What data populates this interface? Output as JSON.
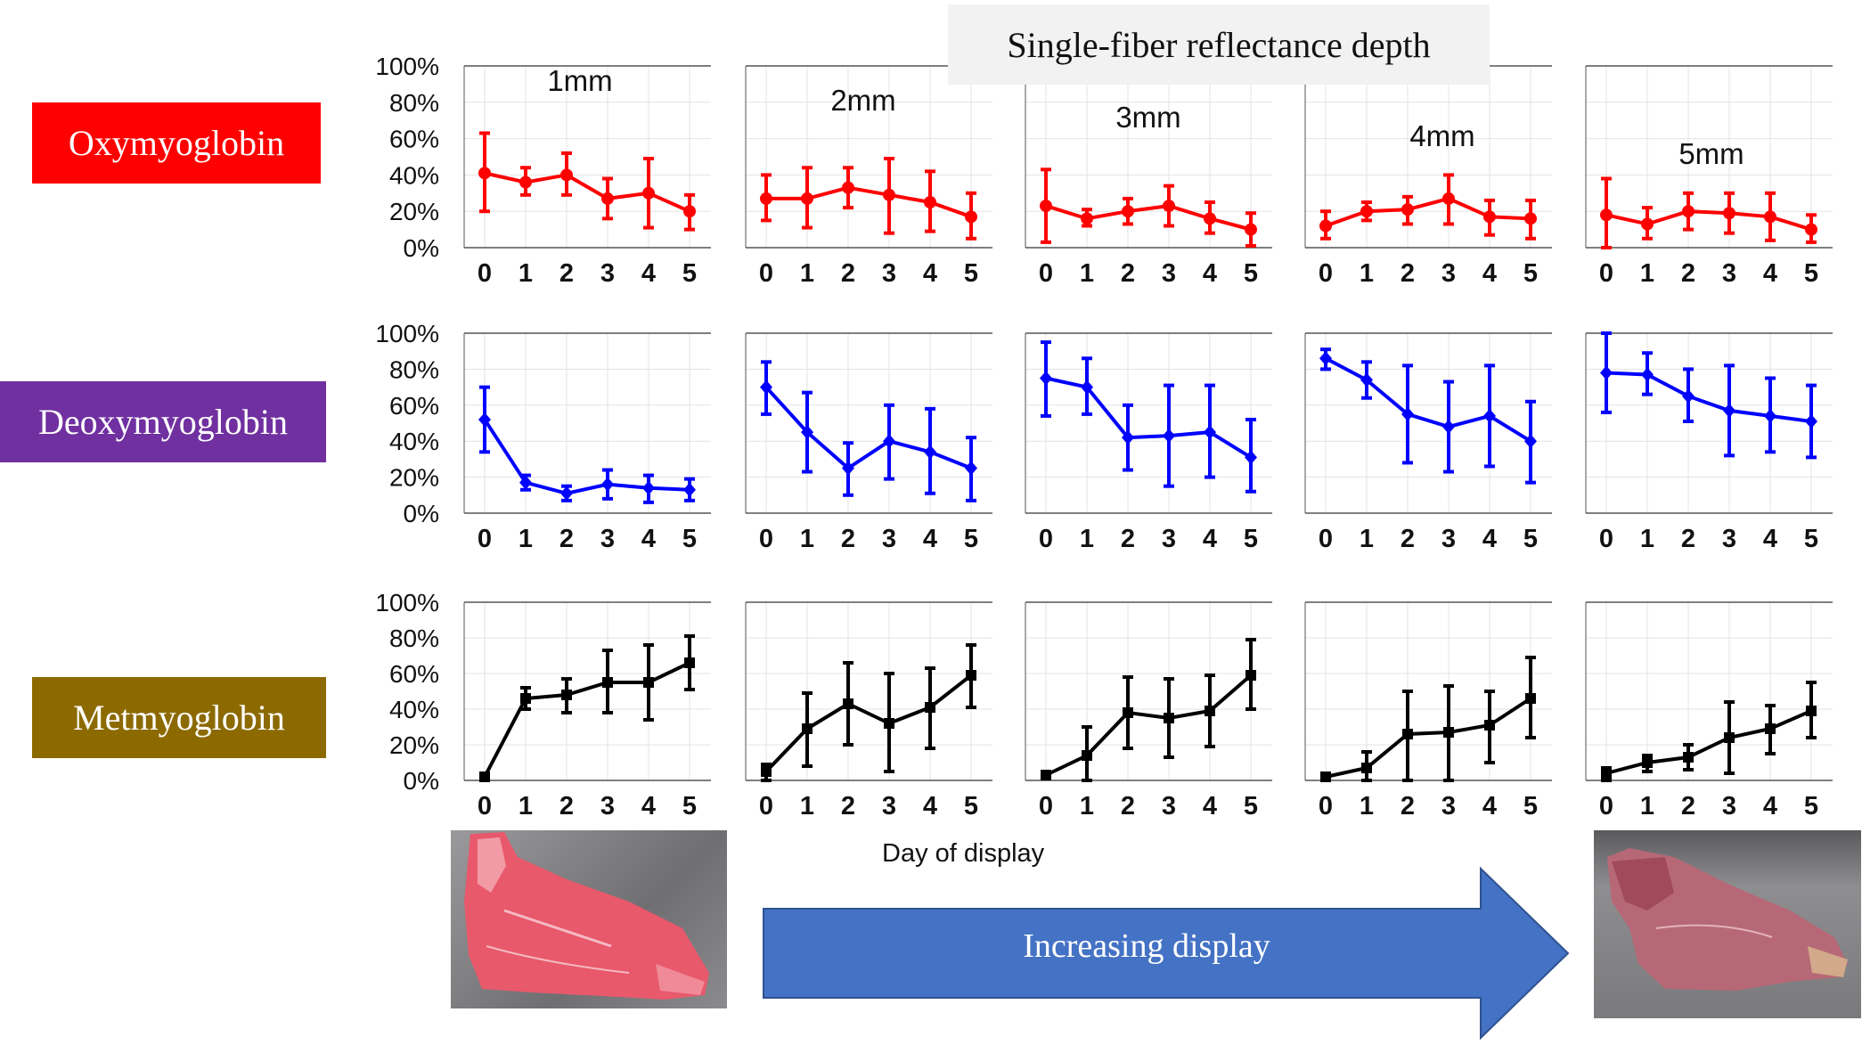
{
  "figure": {
    "title": "Single-fiber reflectance depth",
    "xlabel": "Day of display",
    "arrow_label": "Increasing display",
    "row_labels": [
      {
        "name": "Oxymyoglobin",
        "color": "#ff0000"
      },
      {
        "name": "Deoxymyoglobin",
        "color": "#7030a0"
      },
      {
        "name": "Metmyoglobin",
        "color": "#8c6a00"
      }
    ],
    "photos": [
      {
        "name": "fresh-steak-photo",
        "description": "bright red steak, day 0"
      },
      {
        "name": "aged-steak-photo",
        "description": "discolored steak, day 5"
      }
    ],
    "arrow_color": "#4472c4"
  },
  "chart_data": [
    {
      "type": "line",
      "row": "Oxymyoglobin",
      "depth": "1mm",
      "title": "1mm",
      "color": "#ff0000",
      "marker": "circle",
      "x": [
        0,
        1,
        2,
        3,
        4,
        5
      ],
      "xticks": [
        "0",
        "1",
        "2",
        "3",
        "4",
        "5"
      ],
      "yticks": [
        "0%",
        "20%",
        "40%",
        "60%",
        "80%",
        "100%"
      ],
      "ylim": [
        0,
        100
      ],
      "grid": true,
      "values": [
        41,
        36,
        40,
        27,
        30,
        20
      ],
      "err_low": [
        20,
        29,
        29,
        16,
        11,
        10
      ],
      "err_high": [
        63,
        44,
        52,
        38,
        49,
        29
      ]
    },
    {
      "type": "line",
      "row": "Oxymyoglobin",
      "depth": "2mm",
      "title": "2mm",
      "color": "#ff0000",
      "marker": "circle",
      "x": [
        0,
        1,
        2,
        3,
        4,
        5
      ],
      "xticks": [
        "0",
        "1",
        "2",
        "3",
        "4",
        "5"
      ],
      "ylim": [
        0,
        100
      ],
      "grid": true,
      "values": [
        27,
        27,
        33,
        29,
        25,
        17
      ],
      "err_low": [
        15,
        11,
        22,
        8,
        9,
        5
      ],
      "err_high": [
        40,
        44,
        44,
        49,
        42,
        30
      ]
    },
    {
      "type": "line",
      "row": "Oxymyoglobin",
      "depth": "3mm",
      "title": "3mm",
      "color": "#ff0000",
      "marker": "circle",
      "x": [
        0,
        1,
        2,
        3,
        4,
        5
      ],
      "xticks": [
        "0",
        "1",
        "2",
        "3",
        "4",
        "5"
      ],
      "ylim": [
        0,
        100
      ],
      "grid": true,
      "values": [
        23,
        16,
        20,
        23,
        16,
        10
      ],
      "err_low": [
        3,
        12,
        13,
        12,
        8,
        1
      ],
      "err_high": [
        43,
        21,
        27,
        34,
        25,
        19
      ]
    },
    {
      "type": "line",
      "row": "Oxymyoglobin",
      "depth": "4mm",
      "title": "4mm",
      "color": "#ff0000",
      "marker": "circle",
      "x": [
        0,
        1,
        2,
        3,
        4,
        5
      ],
      "xticks": [
        "0",
        "1",
        "2",
        "3",
        "4",
        "5"
      ],
      "ylim": [
        0,
        100
      ],
      "grid": true,
      "values": [
        12,
        20,
        21,
        27,
        17,
        16
      ],
      "err_low": [
        5,
        15,
        13,
        13,
        7,
        5
      ],
      "err_high": [
        20,
        25,
        28,
        40,
        26,
        26
      ]
    },
    {
      "type": "line",
      "row": "Oxymyoglobin",
      "depth": "5mm",
      "title": "5mm",
      "color": "#ff0000",
      "marker": "circle",
      "x": [
        0,
        1,
        2,
        3,
        4,
        5
      ],
      "xticks": [
        "0",
        "1",
        "2",
        "3",
        "4",
        "5"
      ],
      "ylim": [
        0,
        100
      ],
      "grid": true,
      "values": [
        18,
        13,
        20,
        19,
        17,
        10
      ],
      "err_low": [
        0,
        5,
        10,
        8,
        4,
        3
      ],
      "err_high": [
        38,
        22,
        30,
        30,
        30,
        18
      ]
    },
    {
      "type": "line",
      "row": "Deoxymyoglobin",
      "depth": "1mm",
      "title": "",
      "color": "#0000ff",
      "marker": "diamond",
      "x": [
        0,
        1,
        2,
        3,
        4,
        5
      ],
      "xticks": [
        "0",
        "1",
        "2",
        "3",
        "4",
        "5"
      ],
      "yticks": [
        "0%",
        "20%",
        "40%",
        "60%",
        "80%",
        "100%"
      ],
      "ylim": [
        0,
        100
      ],
      "grid": true,
      "values": [
        52,
        17,
        11,
        16,
        14,
        13
      ],
      "err_low": [
        34,
        13,
        7,
        8,
        6,
        7
      ],
      "err_high": [
        70,
        21,
        15,
        24,
        21,
        19
      ]
    },
    {
      "type": "line",
      "row": "Deoxymyoglobin",
      "depth": "2mm",
      "title": "",
      "color": "#0000ff",
      "marker": "diamond",
      "x": [
        0,
        1,
        2,
        3,
        4,
        5
      ],
      "xticks": [
        "0",
        "1",
        "2",
        "3",
        "4",
        "5"
      ],
      "ylim": [
        0,
        100
      ],
      "grid": true,
      "values": [
        70,
        45,
        25,
        40,
        34,
        25
      ],
      "err_low": [
        55,
        23,
        10,
        19,
        11,
        7
      ],
      "err_high": [
        84,
        67,
        39,
        60,
        58,
        42
      ]
    },
    {
      "type": "line",
      "row": "Deoxymyoglobin",
      "depth": "3mm",
      "title": "",
      "color": "#0000ff",
      "marker": "diamond",
      "x": [
        0,
        1,
        2,
        3,
        4,
        5
      ],
      "xticks": [
        "0",
        "1",
        "2",
        "3",
        "4",
        "5"
      ],
      "ylim": [
        0,
        100
      ],
      "grid": true,
      "values": [
        75,
        70,
        42,
        43,
        45,
        31
      ],
      "err_low": [
        54,
        55,
        24,
        15,
        20,
        12
      ],
      "err_high": [
        95,
        86,
        60,
        71,
        71,
        52
      ]
    },
    {
      "type": "line",
      "row": "Deoxymyoglobin",
      "depth": "4mm",
      "title": "",
      "color": "#0000ff",
      "marker": "diamond",
      "x": [
        0,
        1,
        2,
        3,
        4,
        5
      ],
      "xticks": [
        "0",
        "1",
        "2",
        "3",
        "4",
        "5"
      ],
      "ylim": [
        0,
        100
      ],
      "grid": true,
      "values": [
        86,
        74,
        55,
        48,
        54,
        40
      ],
      "err_low": [
        80,
        64,
        28,
        23,
        26,
        17
      ],
      "err_high": [
        91,
        84,
        82,
        73,
        82,
        62
      ]
    },
    {
      "type": "line",
      "row": "Deoxymyoglobin",
      "depth": "5mm",
      "title": "",
      "color": "#0000ff",
      "marker": "diamond",
      "x": [
        0,
        1,
        2,
        3,
        4,
        5
      ],
      "xticks": [
        "0",
        "1",
        "2",
        "3",
        "4",
        "5"
      ],
      "ylim": [
        0,
        100
      ],
      "grid": true,
      "values": [
        78,
        77,
        65,
        57,
        54,
        51
      ],
      "err_low": [
        56,
        66,
        51,
        32,
        34,
        31
      ],
      "err_high": [
        100,
        89,
        80,
        82,
        75,
        71
      ]
    },
    {
      "type": "line",
      "row": "Metmyoglobin",
      "depth": "1mm",
      "title": "",
      "color": "#000000",
      "marker": "square",
      "x": [
        0,
        1,
        2,
        3,
        4,
        5
      ],
      "xticks": [
        "0",
        "1",
        "2",
        "3",
        "4",
        "5"
      ],
      "yticks": [
        "0%",
        "20%",
        "40%",
        "60%",
        "80%",
        "100%"
      ],
      "ylim": [
        0,
        100
      ],
      "grid": true,
      "values": [
        2,
        46,
        48,
        55,
        55,
        66
      ],
      "err_low": [
        2,
        40,
        38,
        38,
        34,
        51
      ],
      "err_high": [
        2,
        52,
        57,
        73,
        76,
        81
      ]
    },
    {
      "type": "line",
      "row": "Metmyoglobin",
      "depth": "2mm",
      "title": "",
      "color": "#000000",
      "marker": "square",
      "x": [
        0,
        1,
        2,
        3,
        4,
        5
      ],
      "xticks": [
        "0",
        "1",
        "2",
        "3",
        "4",
        "5"
      ],
      "ylim": [
        0,
        100
      ],
      "grid": true,
      "values": [
        5,
        29,
        43,
        32,
        41,
        59
      ],
      "err_low": [
        0,
        8,
        20,
        5,
        18,
        41
      ],
      "err_high": [
        9,
        49,
        66,
        60,
        63,
        76
      ]
    },
    {
      "type": "line",
      "row": "Metmyoglobin",
      "depth": "3mm",
      "title": "",
      "color": "#000000",
      "marker": "square",
      "x": [
        0,
        1,
        2,
        3,
        4,
        5
      ],
      "xticks": [
        "0",
        "1",
        "2",
        "3",
        "4",
        "5"
      ],
      "ylim": [
        0,
        100
      ],
      "grid": true,
      "values": [
        3,
        14,
        38,
        35,
        39,
        59
      ],
      "err_low": [
        3,
        0,
        18,
        13,
        19,
        40
      ],
      "err_high": [
        3,
        30,
        58,
        57,
        59,
        79
      ]
    },
    {
      "type": "line",
      "row": "Metmyoglobin",
      "depth": "4mm",
      "title": "",
      "color": "#000000",
      "marker": "square",
      "x": [
        0,
        1,
        2,
        3,
        4,
        5
      ],
      "xticks": [
        "0",
        "1",
        "2",
        "3",
        "4",
        "5"
      ],
      "ylim": [
        0,
        100
      ],
      "grid": true,
      "values": [
        2,
        7,
        26,
        27,
        31,
        46
      ],
      "err_low": [
        1,
        0,
        0,
        0,
        10,
        24
      ],
      "err_high": [
        3,
        16,
        50,
        53,
        50,
        69
      ]
    },
    {
      "type": "line",
      "row": "Metmyoglobin",
      "depth": "5mm",
      "title": "",
      "color": "#000000",
      "marker": "square",
      "x": [
        0,
        1,
        2,
        3,
        4,
        5
      ],
      "xticks": [
        "0",
        "1",
        "2",
        "3",
        "4",
        "5"
      ],
      "ylim": [
        0,
        100
      ],
      "grid": true,
      "values": [
        4,
        10,
        13,
        24,
        29,
        39
      ],
      "err_low": [
        0,
        5,
        6,
        4,
        15,
        24
      ],
      "err_high": [
        7,
        14,
        20,
        44,
        42,
        55
      ]
    }
  ]
}
